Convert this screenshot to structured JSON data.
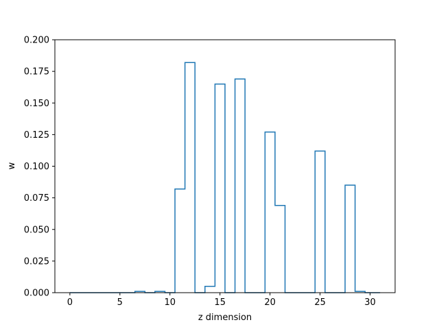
{
  "chart_data": {
    "type": "step",
    "xlabel": "z dimension",
    "ylabel": "w",
    "xlim": [
      -1.5,
      32.5
    ],
    "ylim": [
      0,
      0.2
    ],
    "x_ticks": [
      "0",
      "5",
      "10",
      "15",
      "20",
      "25",
      "30"
    ],
    "x_tick_values": [
      0,
      5,
      10,
      15,
      20,
      25,
      30
    ],
    "y_ticks": [
      "0.000",
      "0.025",
      "0.050",
      "0.075",
      "0.100",
      "0.125",
      "0.150",
      "0.175",
      "0.200"
    ],
    "y_tick_values": [
      0,
      0.025,
      0.05,
      0.075,
      0.1,
      0.125,
      0.15,
      0.175,
      0.2
    ],
    "grid": false,
    "series_color": "#1f77b4",
    "series": [
      {
        "x": [
          0,
          1,
          2,
          3,
          4,
          5,
          6,
          7,
          8,
          9,
          10,
          11,
          12,
          13,
          14,
          15,
          16,
          17,
          18,
          19,
          20,
          21,
          22,
          23,
          24,
          25,
          26,
          27,
          28,
          29,
          30,
          31
        ],
        "values": [
          0,
          0,
          0,
          0,
          0,
          0,
          0,
          0.001,
          0,
          0.001,
          0,
          0.082,
          0.182,
          0,
          0.005,
          0.165,
          0,
          0.169,
          0,
          0,
          0.127,
          0.069,
          0,
          0,
          0,
          0.112,
          0,
          0,
          0.085,
          0.001,
          0,
          0
        ]
      }
    ]
  }
}
